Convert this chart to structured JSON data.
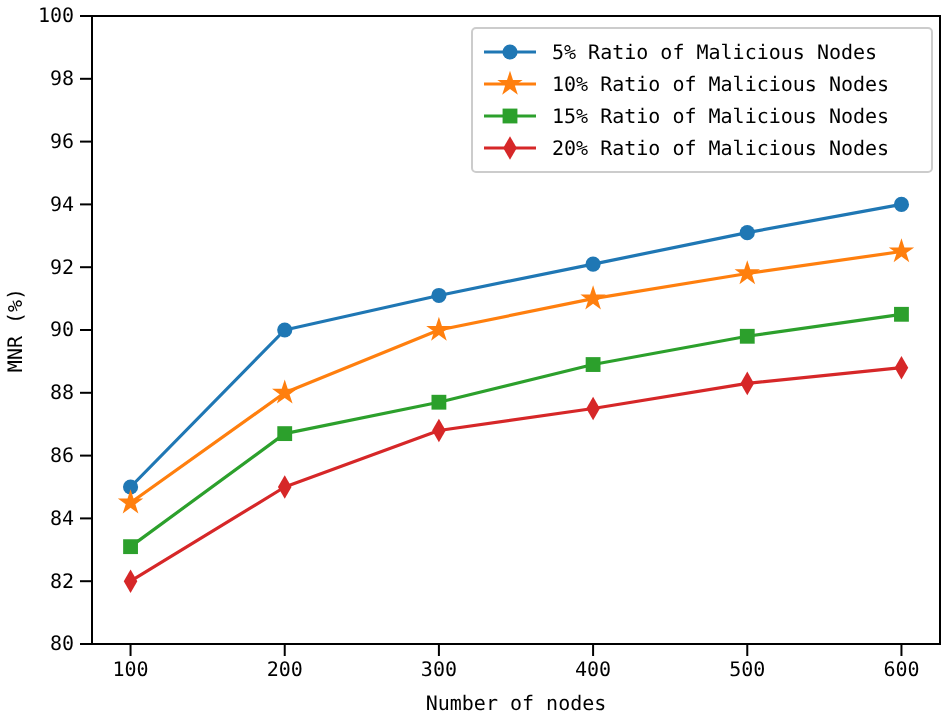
{
  "chart_data": {
    "type": "line",
    "xlabel": "Number of nodes",
    "ylabel": "MNR (%)",
    "x": [
      100,
      200,
      300,
      400,
      500,
      600
    ],
    "xlim": [
      75,
      625
    ],
    "xticks": [
      100,
      200,
      300,
      400,
      500,
      600
    ],
    "ylim": [
      80,
      100
    ],
    "yticks": [
      80,
      82,
      84,
      86,
      88,
      90,
      92,
      94,
      96,
      98,
      100
    ],
    "grid": false,
    "legend": "top right",
    "series": [
      {
        "name": "5% Ratio of Malicious Nodes",
        "color": "#1f77b4",
        "marker": "circle",
        "values": [
          85,
          90,
          91.1,
          92.1,
          93.1,
          94
        ]
      },
      {
        "name": "10% Ratio of Malicious Nodes",
        "color": "#ff7f0e",
        "marker": "star",
        "values": [
          84.5,
          88,
          90,
          91,
          91.8,
          92.5
        ]
      },
      {
        "name": "15% Ratio of Malicious Nodes",
        "color": "#2ca02c",
        "marker": "square",
        "values": [
          83.1,
          86.7,
          87.7,
          88.9,
          89.8,
          90.5
        ]
      },
      {
        "name": "20% Ratio of Malicious Nodes",
        "color": "#d62728",
        "marker": "diamond",
        "values": [
          82,
          85,
          86.8,
          87.5,
          88.3,
          88.8
        ]
      }
    ]
  }
}
